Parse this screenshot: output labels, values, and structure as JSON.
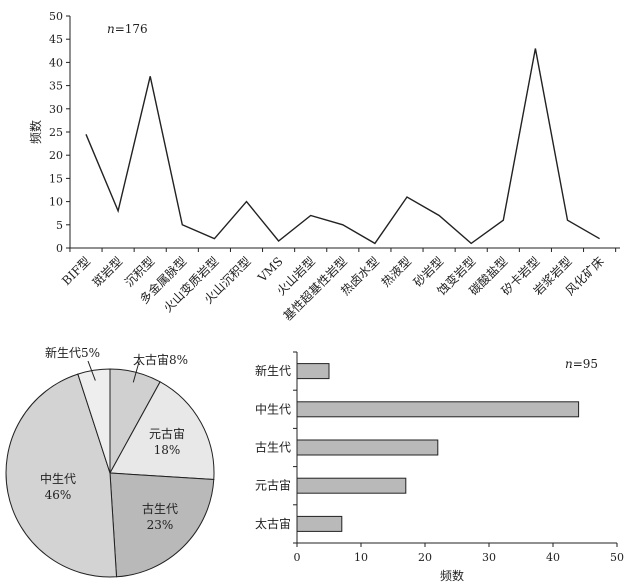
{
  "chart_data": [
    {
      "type": "line",
      "n_label": "n=176",
      "ylabel": "频数",
      "ylim": [
        0,
        50
      ],
      "yticks": [
        0,
        5,
        10,
        15,
        20,
        25,
        30,
        35,
        40,
        45,
        50
      ],
      "categories": [
        "BIF型",
        "斑岩型",
        "沉积型",
        "多金属脉型",
        "火山变质岩型",
        "火山沉积型",
        "VMS",
        "火山岩型",
        "基性超基性岩型",
        "热卤水型",
        "热液型",
        "砂岩型",
        "蚀变岩型",
        "碳酸盐型",
        "矽卡岩型",
        "岩浆岩型",
        "风化矿床"
      ],
      "values": [
        24.5,
        8,
        37,
        5,
        2,
        10,
        1.5,
        7,
        5,
        1,
        11,
        7,
        1,
        6,
        43,
        6,
        2
      ]
    },
    {
      "type": "pie",
      "slices": [
        {
          "name": "太古宙",
          "value": 8,
          "label": "太古宙8%",
          "color": "#d0d0d0"
        },
        {
          "name": "元古宙",
          "value": 18,
          "label": "元古宙",
          "pct": "18%",
          "color": "#e8e8e8"
        },
        {
          "name": "古生代",
          "value": 23,
          "label": "古生代",
          "pct": "23%",
          "color": "#b9b9b9"
        },
        {
          "name": "中生代",
          "value": 46,
          "label": "中生代",
          "pct": "46%",
          "color": "#d3d3d3"
        },
        {
          "name": "新生代",
          "value": 5,
          "label": "新生代5%",
          "color": "#eeeeee"
        }
      ]
    },
    {
      "type": "bar",
      "orientation": "horizontal",
      "n_label": "n=95",
      "xlabel": "频数",
      "xlim": [
        0,
        50
      ],
      "xticks": [
        0,
        10,
        20,
        30,
        40,
        50
      ],
      "categories": [
        "新生代",
        "中生代",
        "古生代",
        "元古宙",
        "太古宙"
      ],
      "values": [
        5,
        44,
        22,
        17,
        7
      ],
      "bar_color": "#b9b9b9"
    }
  ]
}
